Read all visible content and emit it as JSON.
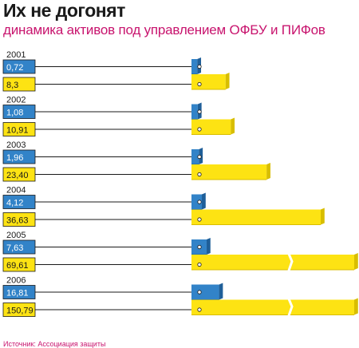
{
  "title": "Их не догонят",
  "subtitle": "динамика активов под управлением ОФБУ и ПИФов",
  "source": "Источник: Ассоциация защиты",
  "colors": {
    "ofbu": "#3283c8",
    "ofbu_dark": "#1f5f99",
    "pif": "#fde313",
    "pif_dark": "#d8be00",
    "title": "#1a1a1a",
    "subtitle": "#c8146e"
  },
  "chart_data": {
    "type": "bar",
    "orientation": "horizontal",
    "categories": [
      "2001",
      "2002",
      "2003",
      "2004",
      "2005",
      "2006"
    ],
    "series": [
      {
        "values": [
          0.72,
          1.08,
          1.96,
          4.12,
          7.63,
          16.81
        ]
      },
      {
        "values": [
          8.3,
          10.91,
          23.4,
          36.63,
          69.61,
          150.79
        ]
      }
    ],
    "value_labels": [
      [
        "0,72",
        "8,3"
      ],
      [
        "1,08",
        "10,91"
      ],
      [
        "1,96",
        "23,40"
      ],
      [
        "4,12",
        "36,63"
      ],
      [
        "7,63",
        "69,61"
      ],
      [
        "16,81",
        "150,79"
      ]
    ],
    "axis_breaks": true
  }
}
